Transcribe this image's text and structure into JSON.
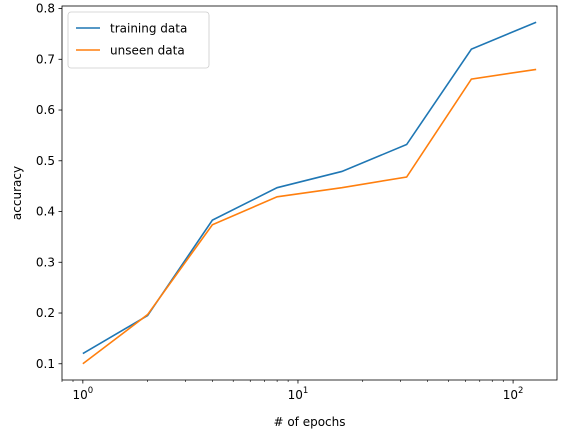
{
  "chart_data": {
    "type": "line",
    "xscale": "log",
    "x": [
      1,
      2,
      4,
      8,
      16,
      32,
      64,
      128
    ],
    "series": [
      {
        "name": "training data",
        "color": "#1f77b4",
        "values": [
          0.12,
          0.195,
          0.383,
          0.447,
          0.479,
          0.532,
          0.72,
          0.773
        ]
      },
      {
        "name": "unseen data",
        "color": "#ff7f0e",
        "values": [
          0.1,
          0.197,
          0.374,
          0.429,
          0.447,
          0.468,
          0.661,
          0.68
        ]
      }
    ],
    "xlabel": "# of epochs",
    "ylabel": "accuracy",
    "xlim": [
      0.8,
      160
    ],
    "ylim": [
      0.068,
      0.805
    ],
    "xticks": [
      {
        "value": 1,
        "base": "10",
        "exp": "0"
      },
      {
        "value": 10,
        "base": "10",
        "exp": "1"
      },
      {
        "value": 100,
        "base": "10",
        "exp": "2"
      }
    ],
    "yticks": [
      {
        "value": 0.1,
        "label": "0.1"
      },
      {
        "value": 0.2,
        "label": "0.2"
      },
      {
        "value": 0.3,
        "label": "0.3"
      },
      {
        "value": 0.4,
        "label": "0.4"
      },
      {
        "value": 0.5,
        "label": "0.5"
      },
      {
        "value": 0.6,
        "label": "0.6"
      },
      {
        "value": 0.7,
        "label": "0.7"
      },
      {
        "value": 0.8,
        "label": "0.8"
      }
    ],
    "grid": false,
    "legend_position": "top-left"
  }
}
